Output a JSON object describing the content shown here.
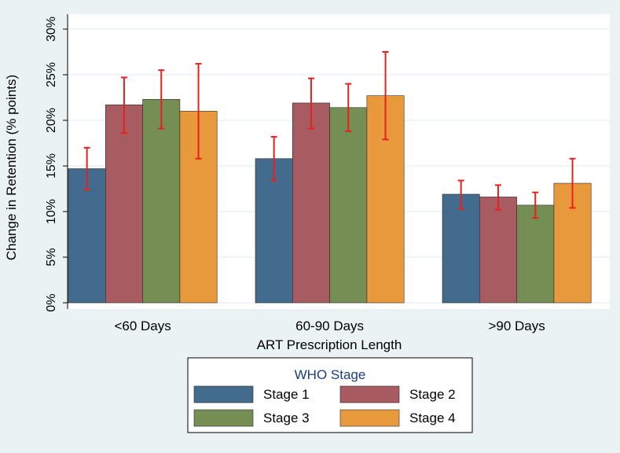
{
  "chart_data": {
    "type": "bar",
    "title": "",
    "xlabel": "ART Prescription Length",
    "ylabel": "Change in Retention (% points)",
    "ylim": [
      0,
      30
    ],
    "yticks": [
      0,
      5,
      10,
      15,
      20,
      25,
      30
    ],
    "ytick_labels": [
      "0%",
      "5%",
      "10%",
      "15%",
      "20%",
      "25%",
      "30%"
    ],
    "categories": [
      "<60 Days",
      "60-90 Days",
      ">90 Days"
    ],
    "grid": true,
    "series": [
      {
        "name": "Stage 1",
        "color": "#436b8e",
        "values": [
          14.7,
          15.8,
          11.9
        ],
        "ci_low": [
          12.4,
          13.4,
          10.3
        ],
        "ci_high": [
          17.0,
          18.2,
          13.4
        ]
      },
      {
        "name": "Stage 2",
        "color": "#a85b60",
        "values": [
          21.7,
          21.9,
          11.6
        ],
        "ci_low": [
          18.6,
          19.1,
          10.2
        ],
        "ci_high": [
          24.7,
          24.6,
          12.9
        ]
      },
      {
        "name": "Stage 3",
        "color": "#758e53",
        "values": [
          22.3,
          21.4,
          10.7
        ],
        "ci_low": [
          19.1,
          18.8,
          9.3
        ],
        "ci_high": [
          25.5,
          24.0,
          12.1
        ]
      },
      {
        "name": "Stage 4",
        "color": "#e8993b",
        "values": [
          21.0,
          22.7,
          13.1
        ],
        "ci_low": [
          15.8,
          17.9,
          10.4
        ],
        "ci_high": [
          26.2,
          27.5,
          15.8
        ]
      }
    ],
    "error_bar_color": "#e8201c",
    "legend": {
      "title": "WHO Stage",
      "placement": "bottom-center"
    }
  }
}
